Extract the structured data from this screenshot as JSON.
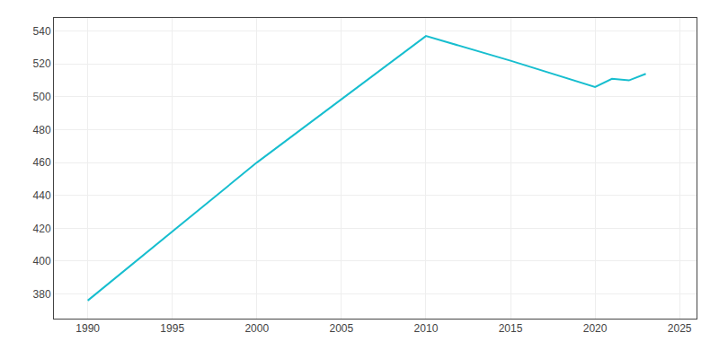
{
  "chart_data": {
    "type": "line",
    "x": [
      1990,
      2000,
      2010,
      2015,
      2020,
      2021,
      2022,
      2023
    ],
    "values": [
      376,
      460,
      537,
      522,
      506,
      511,
      510,
      514
    ],
    "color": "#17becf",
    "xlim": [
      1988,
      2026
    ],
    "ylim": [
      365,
      548
    ],
    "xticks": [
      1990,
      1995,
      2000,
      2005,
      2010,
      2015,
      2020,
      2025
    ],
    "yticks": [
      380,
      400,
      420,
      440,
      460,
      480,
      500,
      520,
      540
    ],
    "grid": true
  }
}
